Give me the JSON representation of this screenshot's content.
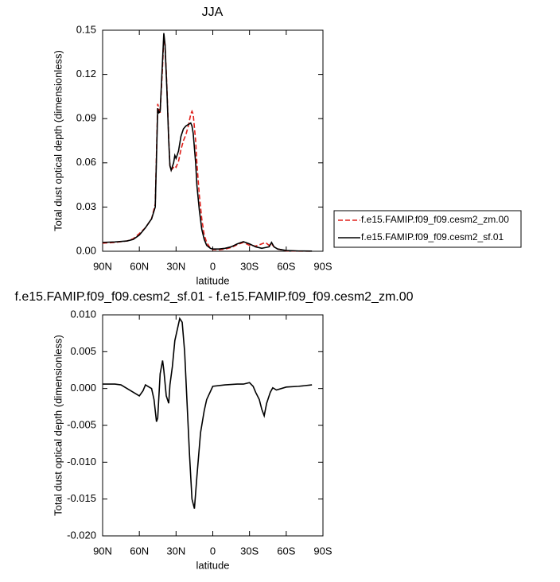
{
  "chart_data": [
    {
      "type": "line",
      "title": "JJA",
      "xlabel": "latitude",
      "ylabel": "Total dust optical depth (dimensionless)",
      "xlim": [
        90,
        -90
      ],
      "xticks": [
        {
          "value": 90,
          "label": "90N"
        },
        {
          "value": 60,
          "label": "60N"
        },
        {
          "value": 30,
          "label": "30N"
        },
        0,
        {
          "value": -30,
          "label": "30S"
        },
        {
          "value": -60,
          "label": "60S"
        },
        {
          "value": -90,
          "label": "90S"
        }
      ],
      "ylim": [
        0,
        0.15
      ],
      "yticks": [
        {
          "value": 0,
          "label": "0.00"
        },
        0.03,
        0.06,
        0.09,
        0.12,
        0.15
      ],
      "legend": "right",
      "x": [
        90,
        80,
        70,
        65,
        60,
        55,
        50,
        47,
        45,
        44,
        43,
        41,
        40,
        39,
        37.5,
        36,
        35,
        34,
        32,
        31,
        30,
        28,
        26,
        24,
        22,
        20,
        18,
        17,
        16,
        14,
        13,
        11,
        9,
        7,
        5,
        2,
        0,
        -5,
        -10,
        -15,
        -20,
        -25,
        -30,
        -35,
        -40,
        -43,
        -46,
        -48,
        -50,
        -53,
        -60,
        -70,
        -81
      ],
      "series": [
        {
          "name": "f.e15.FAMIP.f09_f09.cesm2_zm.00",
          "color": "#e0201b",
          "dash": true,
          "values": [
            0.0055,
            0.006,
            0.007,
            0.0085,
            0.012,
            0.016,
            0.022,
            0.032,
            0.1,
            0.097,
            0.094,
            0.126,
            0.146,
            0.14,
            0.112,
            0.077,
            0.058,
            0.055,
            0.057,
            0.058,
            0.057,
            0.061,
            0.069,
            0.075,
            0.079,
            0.085,
            0.093,
            0.095,
            0.093,
            0.075,
            0.06,
            0.038,
            0.022,
            0.011,
            0.006,
            0.002,
            0.0012,
            0.001,
            0.0015,
            0.0025,
            0.0045,
            0.006,
            0.004,
            0.0035,
            0.005,
            0.006,
            0.004,
            0.005,
            0.003,
            0.0015,
            0.0003,
            0.0001,
            0.0001
          ]
        },
        {
          "name": "f.e15.FAMIP.f09_f09.cesm2_sf.01",
          "color": "#000000",
          "dash": false,
          "values": [
            0.006,
            0.0063,
            0.007,
            0.008,
            0.011,
            0.016,
            0.022,
            0.03,
            0.097,
            0.094,
            0.095,
            0.13,
            0.148,
            0.14,
            0.11,
            0.075,
            0.058,
            0.055,
            0.06,
            0.065,
            0.063,
            0.068,
            0.078,
            0.083,
            0.085,
            0.086,
            0.087,
            0.085,
            0.08,
            0.06,
            0.045,
            0.028,
            0.015,
            0.008,
            0.004,
            0.002,
            0.0015,
            0.0015,
            0.002,
            0.003,
            0.005,
            0.0065,
            0.005,
            0.003,
            0.002,
            0.0025,
            0.003,
            0.006,
            0.003,
            0.0015,
            0.0005,
            0.0002,
            0.0001
          ]
        }
      ]
    },
    {
      "type": "line",
      "title": "f.e15.FAMIP.f09_f09.cesm2_sf.01 - f.e15.FAMIP.f09_f09.cesm2_zm.00",
      "xlabel": "latitude",
      "ylabel": "Total dust optical depth (dimensionless)",
      "xlim": [
        90,
        -90
      ],
      "xticks": [
        {
          "value": 90,
          "label": "90N"
        },
        {
          "value": 60,
          "label": "60N"
        },
        {
          "value": 30,
          "label": "30N"
        },
        0,
        {
          "value": -30,
          "label": "30S"
        },
        {
          "value": -60,
          "label": "60S"
        },
        {
          "value": -90,
          "label": "90S"
        }
      ],
      "ylim": [
        -0.02,
        0.01
      ],
      "yticks": [
        {
          "value": -0.02,
          "label": "-0.020"
        },
        -0.015,
        {
          "value": -0.01,
          "label": "-0.010"
        },
        -0.005,
        {
          "value": 0,
          "label": "0.000"
        },
        0.005,
        {
          "value": 0.01,
          "label": "0.010"
        }
      ],
      "color": "#000000",
      "x": [
        90,
        80,
        75,
        70,
        65,
        60,
        57,
        55,
        53,
        50,
        48,
        46,
        45,
        43,
        41,
        40,
        38,
        36,
        35,
        33,
        31,
        29,
        27,
        25,
        23,
        21,
        19,
        17,
        15,
        13,
        10,
        7,
        5,
        0,
        -10,
        -20,
        -25,
        -30,
        -33,
        -35,
        -38,
        -40,
        -42,
        -44,
        -47,
        -49,
        -52,
        -60,
        -70,
        -81
      ],
      "values": [
        0.0006,
        0.0006,
        0.0005,
        0,
        -0.0005,
        -0.001,
        -0.0003,
        0.0005,
        0.0003,
        0,
        -0.0015,
        -0.0045,
        -0.004,
        0.002,
        0.0038,
        0.0025,
        -0.001,
        -0.002,
        0.0005,
        0.003,
        0.0065,
        0.008,
        0.0095,
        0.009,
        0.005,
        -0.002,
        -0.009,
        -0.015,
        -0.0163,
        -0.012,
        -0.006,
        -0.003,
        -0.0015,
        0.0003,
        0.0005,
        0.0006,
        0.0006,
        0.0008,
        0.0003,
        -0.0005,
        -0.0015,
        -0.0028,
        -0.0037,
        -0.002,
        -0.0005,
        0.0001,
        -0.0002,
        0.0002,
        0.0003,
        0.0005
      ]
    }
  ]
}
